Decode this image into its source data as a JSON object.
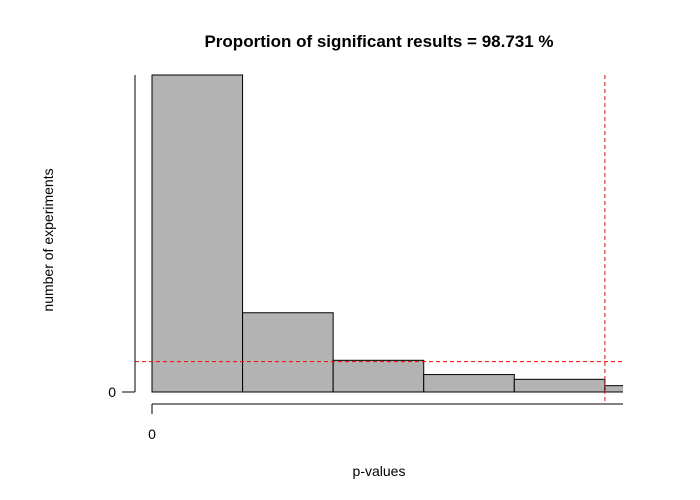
{
  "chart_data": {
    "type": "histogram",
    "title": "Proportion of significant results =  98.731 %",
    "xlabel": "p-values",
    "ylabel": "number of experiments",
    "x_tick_labels": [
      "0"
    ],
    "y_tick_labels": [
      "0"
    ],
    "bin_width": 0.01,
    "bins": [
      {
        "start": 0.0,
        "end": 0.01,
        "count": 100
      },
      {
        "start": 0.01,
        "end": 0.02,
        "count": 25
      },
      {
        "start": 0.02,
        "end": 0.03,
        "count": 10
      },
      {
        "start": 0.03,
        "end": 0.04,
        "count": 5.5
      },
      {
        "start": 0.04,
        "end": 0.05,
        "count": 4
      },
      {
        "start": 0.05,
        "end": 0.06,
        "count": 2
      }
    ],
    "xlim": [
      0,
      0.052
    ],
    "ylim": [
      0,
      100
    ],
    "reference_lines": [
      {
        "orientation": "vertical",
        "value": 0.05,
        "color": "#ff0000",
        "style": "dashed"
      },
      {
        "orientation": "horizontal",
        "value": 9.6,
        "color": "#ff0000",
        "style": "dashed"
      }
    ],
    "colors": {
      "bar_fill": "#b3b3b3",
      "bar_stroke": "#000000"
    }
  }
}
